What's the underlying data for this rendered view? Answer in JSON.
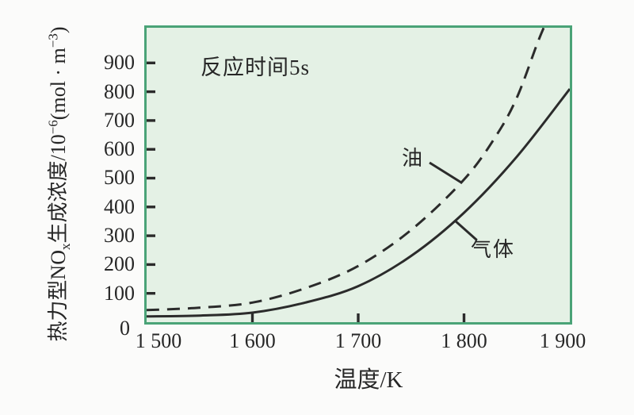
{
  "figure": {
    "annotation": "反应时间5s",
    "x_axis": {
      "title": "温度/K",
      "tick_labels": [
        "1 500",
        "1 600",
        "1 700",
        "1 800",
        "1 900"
      ],
      "tick_values": [
        1500,
        1600,
        1700,
        1800,
        1900
      ]
    },
    "y_axis": {
      "zero_label": "0",
      "tick_labels": [
        "100",
        "200",
        "300",
        "400",
        "500",
        "600",
        "700",
        "800",
        "900"
      ],
      "tick_values": [
        100,
        200,
        300,
        400,
        500,
        600,
        700,
        800,
        900
      ],
      "title_parts": [
        {
          "t": "热力型NO"
        },
        {
          "t": "x",
          "s": "sub"
        },
        {
          "t": "生成浓度/10"
        },
        {
          "t": "−6",
          "s": "sup"
        },
        {
          "t": "(mol · m"
        },
        {
          "t": "−3",
          "s": "sup"
        },
        {
          "t": ")"
        }
      ]
    }
  },
  "chart_data": {
    "type": "line",
    "title": "",
    "xlabel": "温度/K",
    "ylabel": "热力型NOx生成浓度/10−6(mol·m−3)",
    "annotation": "反应时间5s",
    "xlim": [
      1500,
      1900
    ],
    "ylim": [
      0,
      1022
    ],
    "x_ticks": [
      1500,
      1600,
      1700,
      1800,
      1900
    ],
    "y_ticks": [
      0,
      100,
      200,
      300,
      400,
      500,
      600,
      700,
      800,
      900
    ],
    "grid": false,
    "legend_position": "inline labels with leader lines",
    "series": [
      {
        "name": "油",
        "line_style": "dashed",
        "points": [
          [
            1500,
            42
          ],
          [
            1550,
            50
          ],
          [
            1600,
            68
          ],
          [
            1650,
            118
          ],
          [
            1700,
            195
          ],
          [
            1750,
            320
          ],
          [
            1800,
            495
          ],
          [
            1830,
            645
          ],
          [
            1850,
            780
          ],
          [
            1870,
            975
          ],
          [
            1880,
            1060
          ]
        ]
      },
      {
        "name": "气体",
        "line_style": "solid",
        "points": [
          [
            1500,
            20
          ],
          [
            1550,
            23
          ],
          [
            1600,
            33
          ],
          [
            1650,
            68
          ],
          [
            1700,
            125
          ],
          [
            1750,
            230
          ],
          [
            1800,
            380
          ],
          [
            1850,
            575
          ],
          [
            1900,
            810
          ]
        ]
      }
    ]
  },
  "colors": {
    "frame": "#4aa377",
    "plot_bg": "#e4f1e5",
    "curve": "#2b2b2b",
    "text": "#262626",
    "page_bg": "#fbfbfa"
  }
}
